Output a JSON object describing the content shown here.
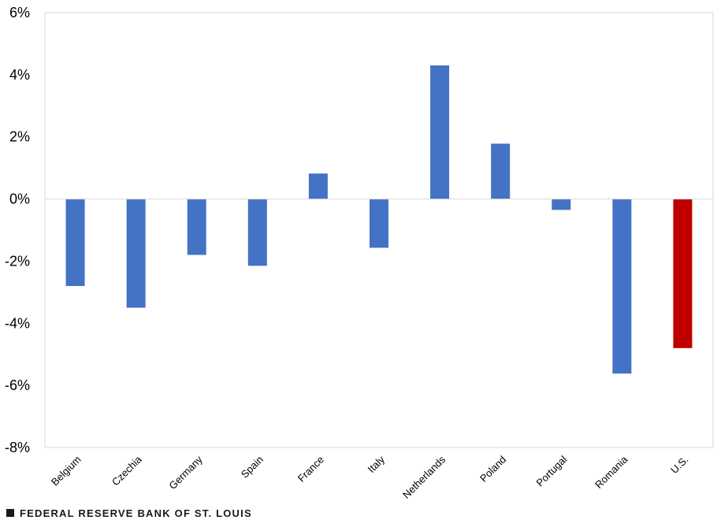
{
  "chart_data": {
    "type": "bar",
    "categories": [
      "Belgium",
      "Czechia",
      "Germany",
      "Spain",
      "France",
      "Italy",
      "Netherlands",
      "Poland",
      "Portugal",
      "Romania",
      "U.S."
    ],
    "values": [
      -2.8,
      -3.5,
      -1.8,
      -2.15,
      0.82,
      -1.57,
      4.3,
      1.78,
      -0.35,
      -5.62,
      -4.8
    ],
    "colors": [
      "#4472c4",
      "#4472c4",
      "#4472c4",
      "#4472c4",
      "#4472c4",
      "#4472c4",
      "#4472c4",
      "#4472c4",
      "#4472c4",
      "#4472c4",
      "#c00000"
    ],
    "yticks": [
      "6%",
      "4%",
      "2%",
      "0%",
      "-2%",
      "-4%",
      "-6%",
      "-8%"
    ],
    "ylim": [
      -8,
      6
    ],
    "grid": false
  },
  "footer": {
    "source_label": "FEDERAL RESERVE BANK OF ST. LOUIS"
  }
}
